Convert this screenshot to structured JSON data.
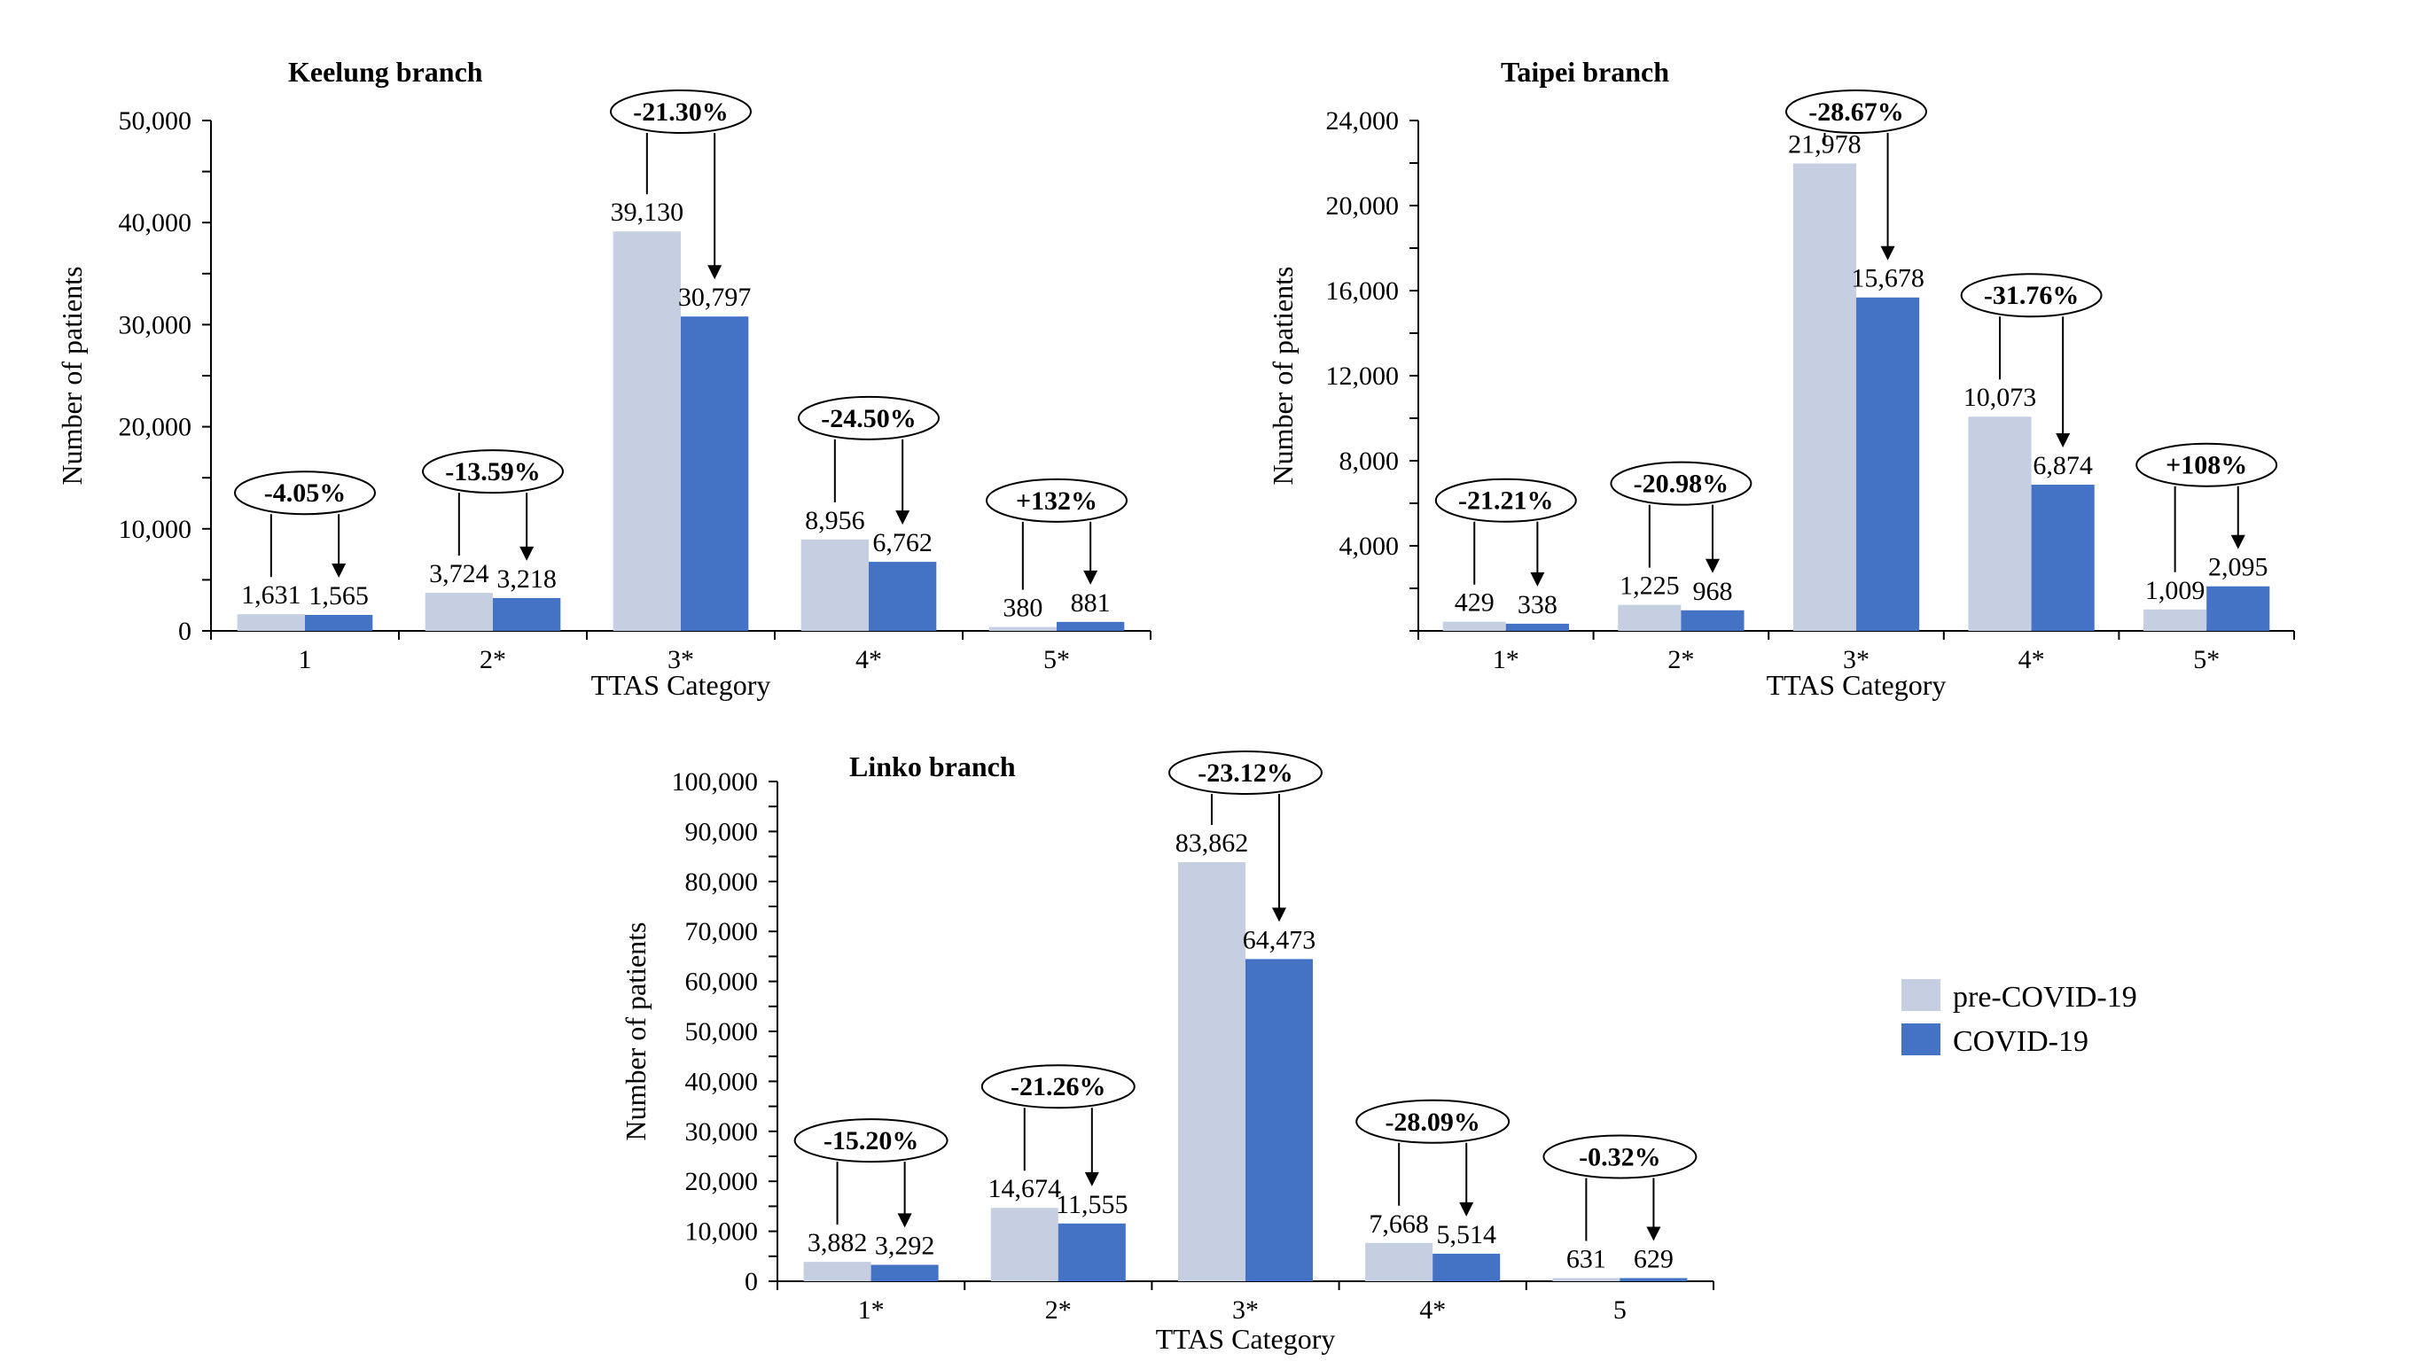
{
  "colors": {
    "pre": "#c5cfe1",
    "covid": "#4472c4",
    "axis": "#000000"
  },
  "legend": {
    "items": [
      "pre-COVID-19",
      "COVID-19"
    ]
  },
  "chart_data": [
    {
      "type": "bar",
      "title": "Keelung branch",
      "xlabel": "TTAS Category",
      "ylabel": "Number of patients",
      "categories": [
        "1",
        "2*",
        "3*",
        "4*",
        "5*"
      ],
      "series": [
        {
          "name": "pre-COVID-19",
          "values": [
            1631,
            3724,
            39130,
            8956,
            380
          ]
        },
        {
          "name": "COVID-19",
          "values": [
            1565,
            3218,
            30797,
            6762,
            881
          ]
        }
      ],
      "value_labels": {
        "pre": [
          "1,631",
          "3,724",
          "39,130",
          "8,956",
          "380"
        ],
        "covid": [
          "1,565",
          "3,218",
          "30,797",
          "6,762",
          "881"
        ]
      },
      "changes": [
        "-4.05%",
        "-13.59%",
        "-21.30%",
        "-24.50%",
        "+132%"
      ],
      "ylim": [
        0,
        50000
      ],
      "yticks": [
        "0",
        "10,000",
        "20,000",
        "30,000",
        "40,000",
        "50,000"
      ],
      "grid": false
    },
    {
      "type": "bar",
      "title": "Taipei branch",
      "xlabel": "TTAS Category",
      "ylabel": "Number of patients",
      "categories": [
        "1*",
        "2*",
        "3*",
        "4*",
        "5*"
      ],
      "series": [
        {
          "name": "pre-COVID-19",
          "values": [
            429,
            1225,
            21978,
            10073,
            1009
          ]
        },
        {
          "name": "COVID-19",
          "values": [
            338,
            968,
            15678,
            6874,
            2095
          ]
        }
      ],
      "value_labels": {
        "pre": [
          "429",
          "1,225",
          "21,978",
          "10,073",
          "1,009"
        ],
        "covid": [
          "338",
          "968",
          "15,678",
          "6,874",
          "2,095"
        ]
      },
      "changes": [
        "-21.21%",
        "-20.98%",
        "-28.67%",
        "-31.76%",
        "+108%"
      ],
      "ylim": [
        0,
        24000
      ],
      "yticks": [
        "4,000",
        "8,000",
        "12,000",
        "16,000",
        "20,000",
        "24,000"
      ],
      "grid": false
    },
    {
      "type": "bar",
      "title": "Linko branch",
      "xlabel": "TTAS Category",
      "ylabel": "Number of patients",
      "categories": [
        "1*",
        "2*",
        "3*",
        "4*",
        "5"
      ],
      "series": [
        {
          "name": "pre-COVID-19",
          "values": [
            3882,
            14674,
            83862,
            7668,
            631
          ]
        },
        {
          "name": "COVID-19",
          "values": [
            3292,
            11555,
            64473,
            5514,
            629
          ]
        }
      ],
      "value_labels": {
        "pre": [
          "3,882",
          "14,674",
          "83,862",
          "7,668",
          "631"
        ],
        "covid": [
          "3,292",
          "11,555",
          "64,473",
          "5,514",
          "629"
        ]
      },
      "changes": [
        "-15.20%",
        "-21.26%",
        "-23.12%",
        "-28.09%",
        "-0.32%"
      ],
      "ylim": [
        0,
        100000
      ],
      "yticks": [
        "0",
        "10,000",
        "20,000",
        "30,000",
        "40,000",
        "50,000",
        "60,000",
        "70,000",
        "80,000",
        "90,000",
        "100,000"
      ],
      "grid": false
    }
  ]
}
